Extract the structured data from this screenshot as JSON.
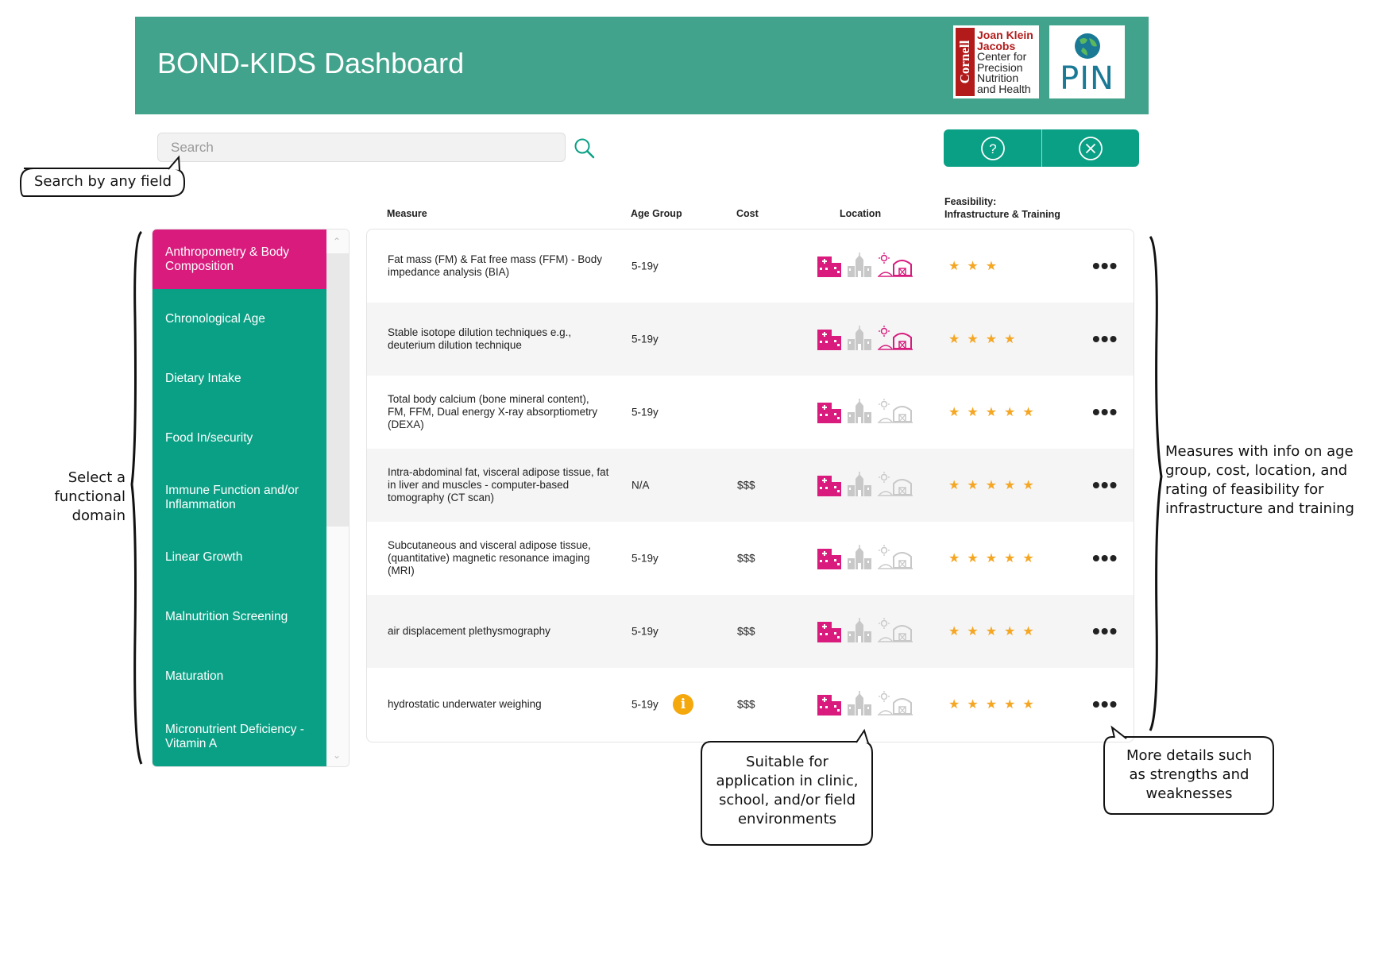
{
  "header": {
    "title": "BOND-KIDS Dashboard"
  },
  "logos": {
    "cornell_bar": "Cornell",
    "cornell_name_line1": "Joan Klein",
    "cornell_name_line2": "Jacobs",
    "cornell_center_lines": [
      "Center for",
      "Precision",
      "Nutrition",
      "and Health"
    ],
    "pin": "PIN"
  },
  "search": {
    "placeholder": "Search"
  },
  "columns": {
    "measure": "Measure",
    "age": "Age Group",
    "cost": "Cost",
    "location": "Location",
    "feasibility_line1": "Feasibility:",
    "feasibility_line2": "Infrastructure & Training"
  },
  "sidebar": {
    "items": [
      {
        "label": "Anthropometry & Body Composition",
        "active": true
      },
      {
        "label": "Chronological Age"
      },
      {
        "label": "Dietary Intake"
      },
      {
        "label": "Food In/security"
      },
      {
        "label": "Immune Function and/or Inflammation"
      },
      {
        "label": "Linear Growth"
      },
      {
        "label": "Malnutrition Screening"
      },
      {
        "label": "Maturation"
      },
      {
        "label": "Micronutrient Deficiency - Vitamin A"
      }
    ]
  },
  "rows": [
    {
      "measure": "Fat mass (FM) & Fat free mass (FFM) - Body impedance analysis (BIA)",
      "age": "5-19y",
      "cost": "",
      "locations": {
        "clinic": true,
        "school": false,
        "field": true
      },
      "stars": 3
    },
    {
      "measure": "Stable isotope dilution techniques e.g., deuterium dilution technique",
      "age": "5-19y",
      "cost": "",
      "locations": {
        "clinic": true,
        "school": false,
        "field": true
      },
      "stars": 4
    },
    {
      "measure": "Total body calcium (bone mineral content), FM, FFM, Dual energy X-ray absorptiometry (DEXA)",
      "age": "5-19y",
      "cost": "",
      "locations": {
        "clinic": true,
        "school": false,
        "field": false
      },
      "stars": 5
    },
    {
      "measure": "Intra-abdominal fat,  visceral adipose tissue, fat in liver and muscles - computer-based tomography (CT scan)",
      "age": "N/A",
      "cost": "$$$",
      "locations": {
        "clinic": true,
        "school": false,
        "field": false
      },
      "stars": 5
    },
    {
      "measure": "Subcutaneous and visceral adipose tissue, (quantitative) magnetic resonance imaging (MRI)",
      "age": "5-19y",
      "cost": "$$$",
      "locations": {
        "clinic": true,
        "school": false,
        "field": false
      },
      "stars": 5
    },
    {
      "measure": "air displacement plethysmography",
      "age": "5-19y",
      "cost": "$$$",
      "locations": {
        "clinic": true,
        "school": false,
        "field": false
      },
      "stars": 5
    },
    {
      "measure": "hydrostatic underwater weighing",
      "age": "5-19y",
      "cost": "$$$",
      "locations": {
        "clinic": true,
        "school": false,
        "field": false
      },
      "stars": 5,
      "info": "i"
    }
  ],
  "annotations": {
    "search": "Search by any field",
    "domain": [
      "Select a",
      "functional",
      "domain"
    ],
    "measures": [
      "Measures with info on age",
      "group, cost, location, and",
      "rating of feasibility for",
      "infrastructure and training"
    ],
    "location": [
      "Suitable for",
      "application in clinic,",
      "school, and/or field",
      "environments"
    ],
    "details": [
      "More details such",
      "as strengths and",
      "weaknesses"
    ]
  },
  "colors": {
    "header": "#41a38b",
    "accent": "#0aa085",
    "active": "#d81b7d",
    "star": "#f5a623",
    "location_on": "#d81b7d",
    "location_off": "#c8c8c8"
  },
  "icons": {
    "search": "magnifier-icon",
    "help": "question-circle-icon",
    "close": "x-circle-icon",
    "more": "ellipsis-icon",
    "clinic": "hospital-icon",
    "school": "school-icon",
    "field": "farm-icon"
  }
}
